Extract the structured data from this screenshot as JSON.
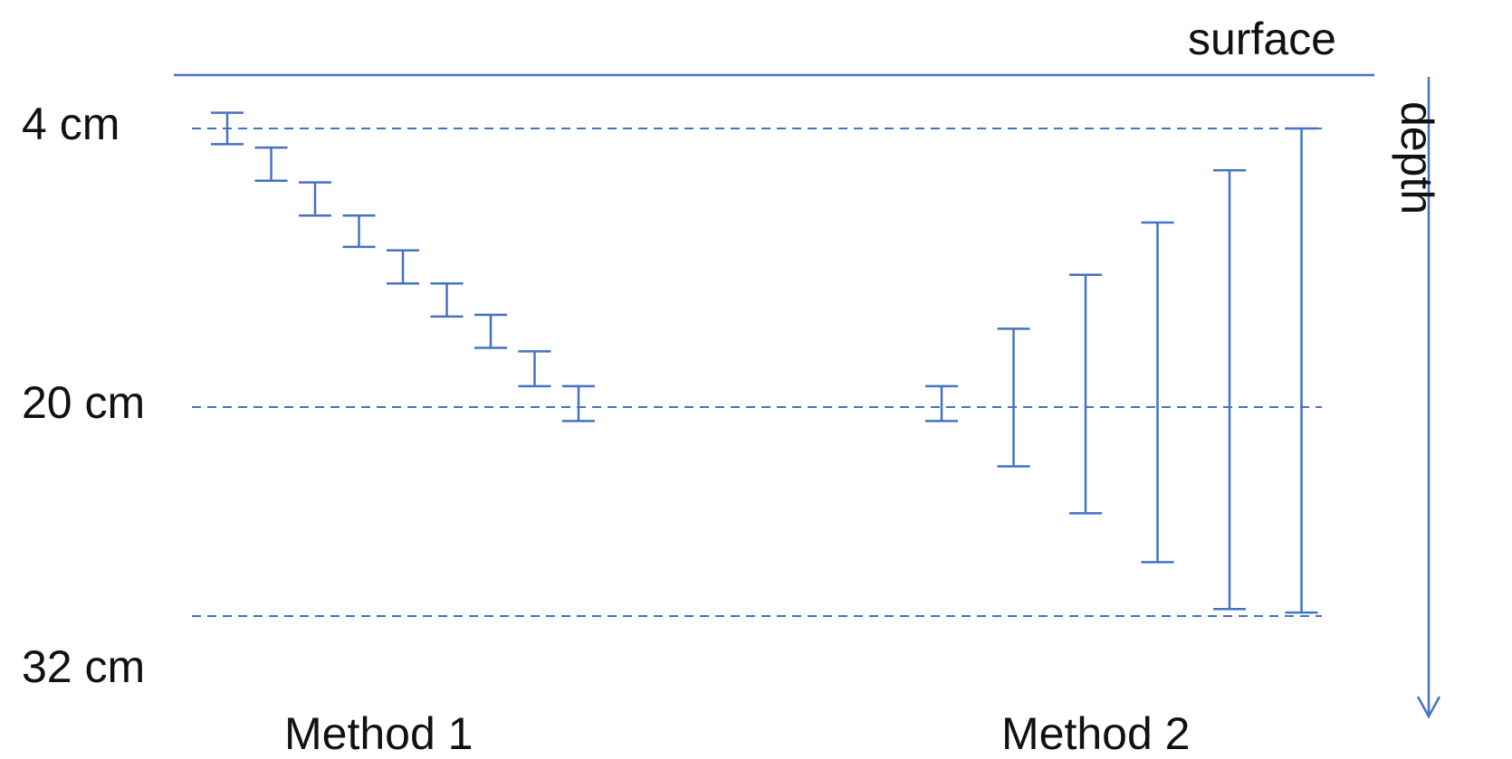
{
  "labels": {
    "surface": "surface",
    "depth": "depth",
    "method1": "Method 1",
    "method2": "Method 2"
  },
  "depth_markers": [
    {
      "label": "4 cm",
      "depth_cm": 4
    },
    {
      "label": "20 cm",
      "depth_cm": 20
    },
    {
      "label": "32 cm",
      "depth_cm": 32
    }
  ],
  "colors": {
    "line": "#4472C4",
    "text": "#111111"
  },
  "method1": {
    "intervals": [
      {
        "low": 3.1,
        "high": 4.9
      },
      {
        "low": 5.1,
        "high": 7.0
      },
      {
        "low": 7.1,
        "high": 9.0
      },
      {
        "low": 9.0,
        "high": 10.8
      },
      {
        "low": 11.0,
        "high": 12.9
      },
      {
        "low": 12.9,
        "high": 14.8
      },
      {
        "low": 14.7,
        "high": 16.6
      },
      {
        "low": 16.8,
        "high": 18.8
      },
      {
        "low": 18.8,
        "high": 20.8
      }
    ]
  },
  "method2": {
    "intervals": [
      {
        "low": 18.8,
        "high": 20.8
      },
      {
        "low": 15.5,
        "high": 23.4
      },
      {
        "low": 12.4,
        "high": 26.1
      },
      {
        "low": 9.4,
        "high": 28.9
      },
      {
        "low": 6.4,
        "high": 31.6
      },
      {
        "low": 4.0,
        "high": 31.8
      }
    ]
  }
}
